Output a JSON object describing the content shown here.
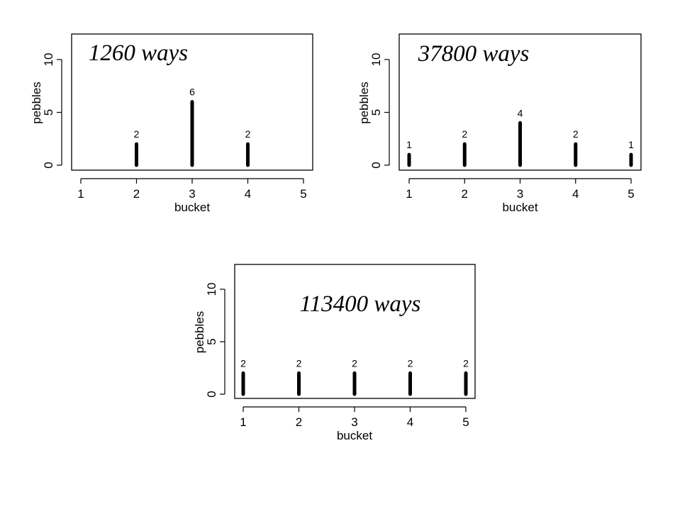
{
  "chart_data": [
    {
      "type": "bar",
      "annotation": "1260 ways",
      "xlabel": "bucket",
      "ylabel": "pebbles",
      "categories": [
        "1",
        "2",
        "3",
        "4",
        "5"
      ],
      "values": [
        0,
        2,
        6,
        2,
        0
      ],
      "data_labels": [
        "",
        "2",
        "6",
        "2",
        ""
      ],
      "yticks": [
        "0",
        "5",
        "10"
      ],
      "xlim": [
        1,
        5
      ],
      "ylim": [
        0,
        12
      ]
    },
    {
      "type": "bar",
      "annotation": "37800 ways",
      "xlabel": "bucket",
      "ylabel": "pebbles",
      "categories": [
        "1",
        "2",
        "3",
        "4",
        "5"
      ],
      "values": [
        1,
        2,
        4,
        2,
        1
      ],
      "data_labels": [
        "1",
        "2",
        "4",
        "2",
        "1"
      ],
      "yticks": [
        "0",
        "5",
        "10"
      ],
      "xlim": [
        1,
        5
      ],
      "ylim": [
        0,
        12
      ]
    },
    {
      "type": "bar",
      "annotation": "113400 ways",
      "xlabel": "bucket",
      "ylabel": "pebbles",
      "categories": [
        "1",
        "2",
        "3",
        "4",
        "5"
      ],
      "values": [
        2,
        2,
        2,
        2,
        2
      ],
      "data_labels": [
        "2",
        "2",
        "2",
        "2",
        "2"
      ],
      "yticks": [
        "0",
        "5",
        "10"
      ],
      "xlim": [
        1,
        5
      ],
      "ylim": [
        0,
        12
      ]
    }
  ]
}
